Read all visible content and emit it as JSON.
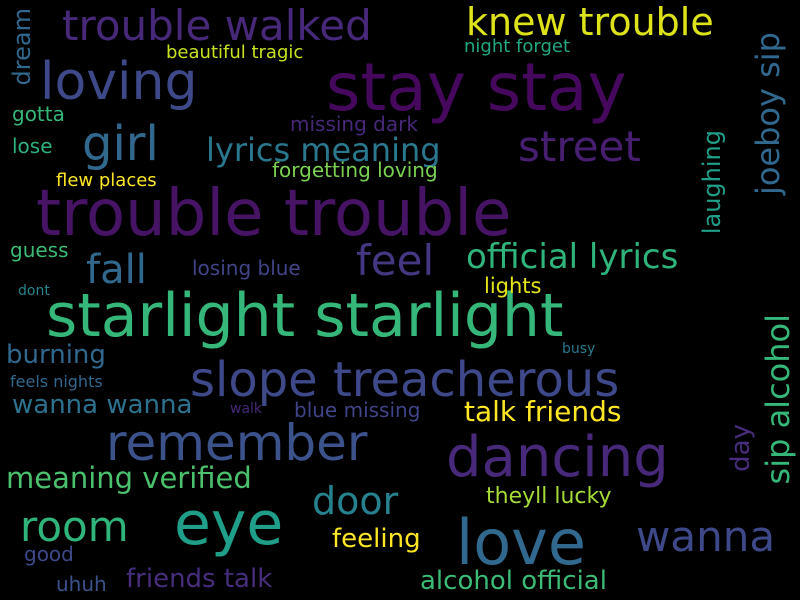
{
  "colors": {
    "background": "#000000",
    "palette": [
      "#440154",
      "#482878",
      "#3e4989",
      "#31688e",
      "#26828e",
      "#1f9e89",
      "#35b779",
      "#6ece58",
      "#b5de2b",
      "#fde725"
    ]
  },
  "words": [
    {
      "text": "stay stay",
      "color": "#46085c"
    },
    {
      "text": "trouble trouble",
      "color": "#471365"
    },
    {
      "text": "starlight starlight",
      "color": "#35b779"
    },
    {
      "text": "love",
      "color": "#31688e"
    },
    {
      "text": "eye",
      "color": "#1f9e89"
    },
    {
      "text": "dancing",
      "color": "#482878"
    },
    {
      "text": "slope treacherous",
      "color": "#3e4989"
    },
    {
      "text": "remember",
      "color": "#3b528b"
    },
    {
      "text": "loving",
      "color": "#3e4989"
    },
    {
      "text": "trouble walked",
      "color": "#482878"
    },
    {
      "text": "knew trouble",
      "color": "#dde318"
    },
    {
      "text": "girl",
      "color": "#31688e"
    },
    {
      "text": "street",
      "color": "#481f70"
    },
    {
      "text": "lyrics meaning",
      "color": "#2a788e"
    },
    {
      "text": "feel",
      "color": "#453781"
    },
    {
      "text": "official lyrics",
      "color": "#2fb47c"
    },
    {
      "text": "fall",
      "color": "#31688e"
    },
    {
      "text": "room",
      "color": "#2fb47c"
    },
    {
      "text": "door",
      "color": "#26828e"
    },
    {
      "text": "wanna",
      "color": "#3e4989"
    },
    {
      "text": "meaning verified",
      "color": "#4ac16d"
    },
    {
      "text": "talk friends",
      "color": "#fde725"
    },
    {
      "text": "wanna wanna",
      "color": "#2c728e"
    },
    {
      "text": "burning",
      "color": "#31688e"
    },
    {
      "text": "alcohol official",
      "color": "#3bbb75"
    },
    {
      "text": "friends talk",
      "color": "#472d7b"
    },
    {
      "text": "feeling",
      "color": "#fde725"
    },
    {
      "text": "theyll lucky",
      "color": "#a5db36"
    },
    {
      "text": "lights",
      "color": "#e5e419"
    },
    {
      "text": "forgetting loving",
      "color": "#7ad151"
    },
    {
      "text": "missing dark",
      "color": "#482878"
    },
    {
      "text": "losing blue",
      "color": "#414487"
    },
    {
      "text": "blue missing",
      "color": "#414487"
    },
    {
      "text": "flew places",
      "color": "#fde725"
    },
    {
      "text": "beautiful tragic",
      "color": "#cae11f"
    },
    {
      "text": "night forget",
      "color": "#22a884"
    },
    {
      "text": "gotta",
      "color": "#35b779"
    },
    {
      "text": "lose",
      "color": "#2db27d"
    },
    {
      "text": "guess",
      "color": "#3bbb75"
    },
    {
      "text": "good",
      "color": "#3e4989"
    },
    {
      "text": "uhuh",
      "color": "#3b528b"
    },
    {
      "text": "feels nights",
      "color": "#31688e"
    },
    {
      "text": "dont",
      "color": "#25858e"
    },
    {
      "text": "busy",
      "color": "#2a788e"
    },
    {
      "text": "walk",
      "color": "#482878"
    },
    {
      "text": "joeboy sip",
      "color": "#31688e"
    },
    {
      "text": "sip alcohol",
      "color": "#35b779"
    },
    {
      "text": "day",
      "color": "#472d7b"
    },
    {
      "text": "laughing",
      "color": "#1f9e89"
    },
    {
      "text": "dream",
      "color": "#31688e"
    }
  ]
}
